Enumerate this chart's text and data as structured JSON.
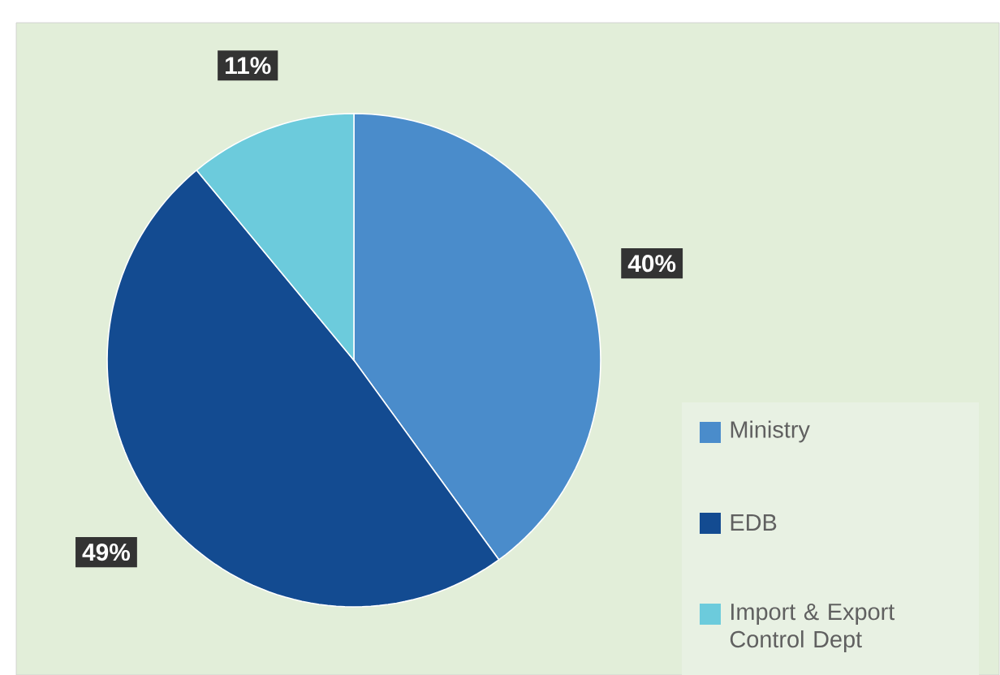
{
  "chart_data": {
    "type": "pie",
    "categories": [
      "Ministry",
      "EDB",
      "Import & Export Control Dept"
    ],
    "values": [
      40,
      49,
      11
    ],
    "colors": [
      "#4a8ccb",
      "#134b91",
      "#6ccbdc"
    ],
    "value_labels": [
      "40%",
      "49%",
      "11%"
    ],
    "legend": "right"
  }
}
